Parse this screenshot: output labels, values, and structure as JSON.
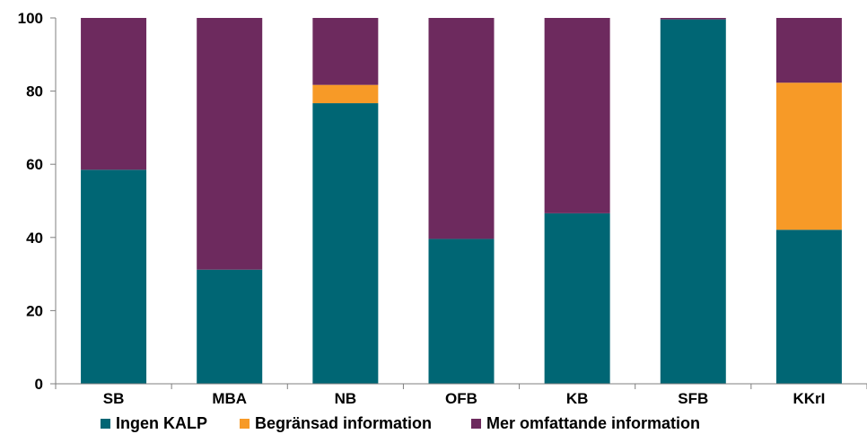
{
  "chart_data": {
    "type": "bar",
    "stacked": true,
    "categories": [
      "SB",
      "MBA",
      "NB",
      "OFB",
      "KB",
      "SFB",
      "KKrI"
    ],
    "series": [
      {
        "name": "Ingen KALP",
        "color": "#006674",
        "values": [
          58.5,
          31.2,
          76.7,
          39.6,
          46.6,
          99.6,
          42.1
        ]
      },
      {
        "name": "Begränsad information",
        "color": "#f79a27",
        "values": [
          0,
          0,
          5.0,
          0,
          0,
          0,
          40.2
        ]
      },
      {
        "name": "Mer omfattande information",
        "color": "#6d2a5e",
        "values": [
          41.5,
          68.8,
          18.3,
          60.4,
          53.4,
          0.4,
          17.7
        ]
      }
    ],
    "ylim": [
      0,
      100
    ],
    "yticks": [
      0,
      20,
      40,
      60,
      80,
      100
    ],
    "xlabel": "",
    "ylabel": "",
    "title": "",
    "grid": false,
    "legend_position": "bottom"
  }
}
